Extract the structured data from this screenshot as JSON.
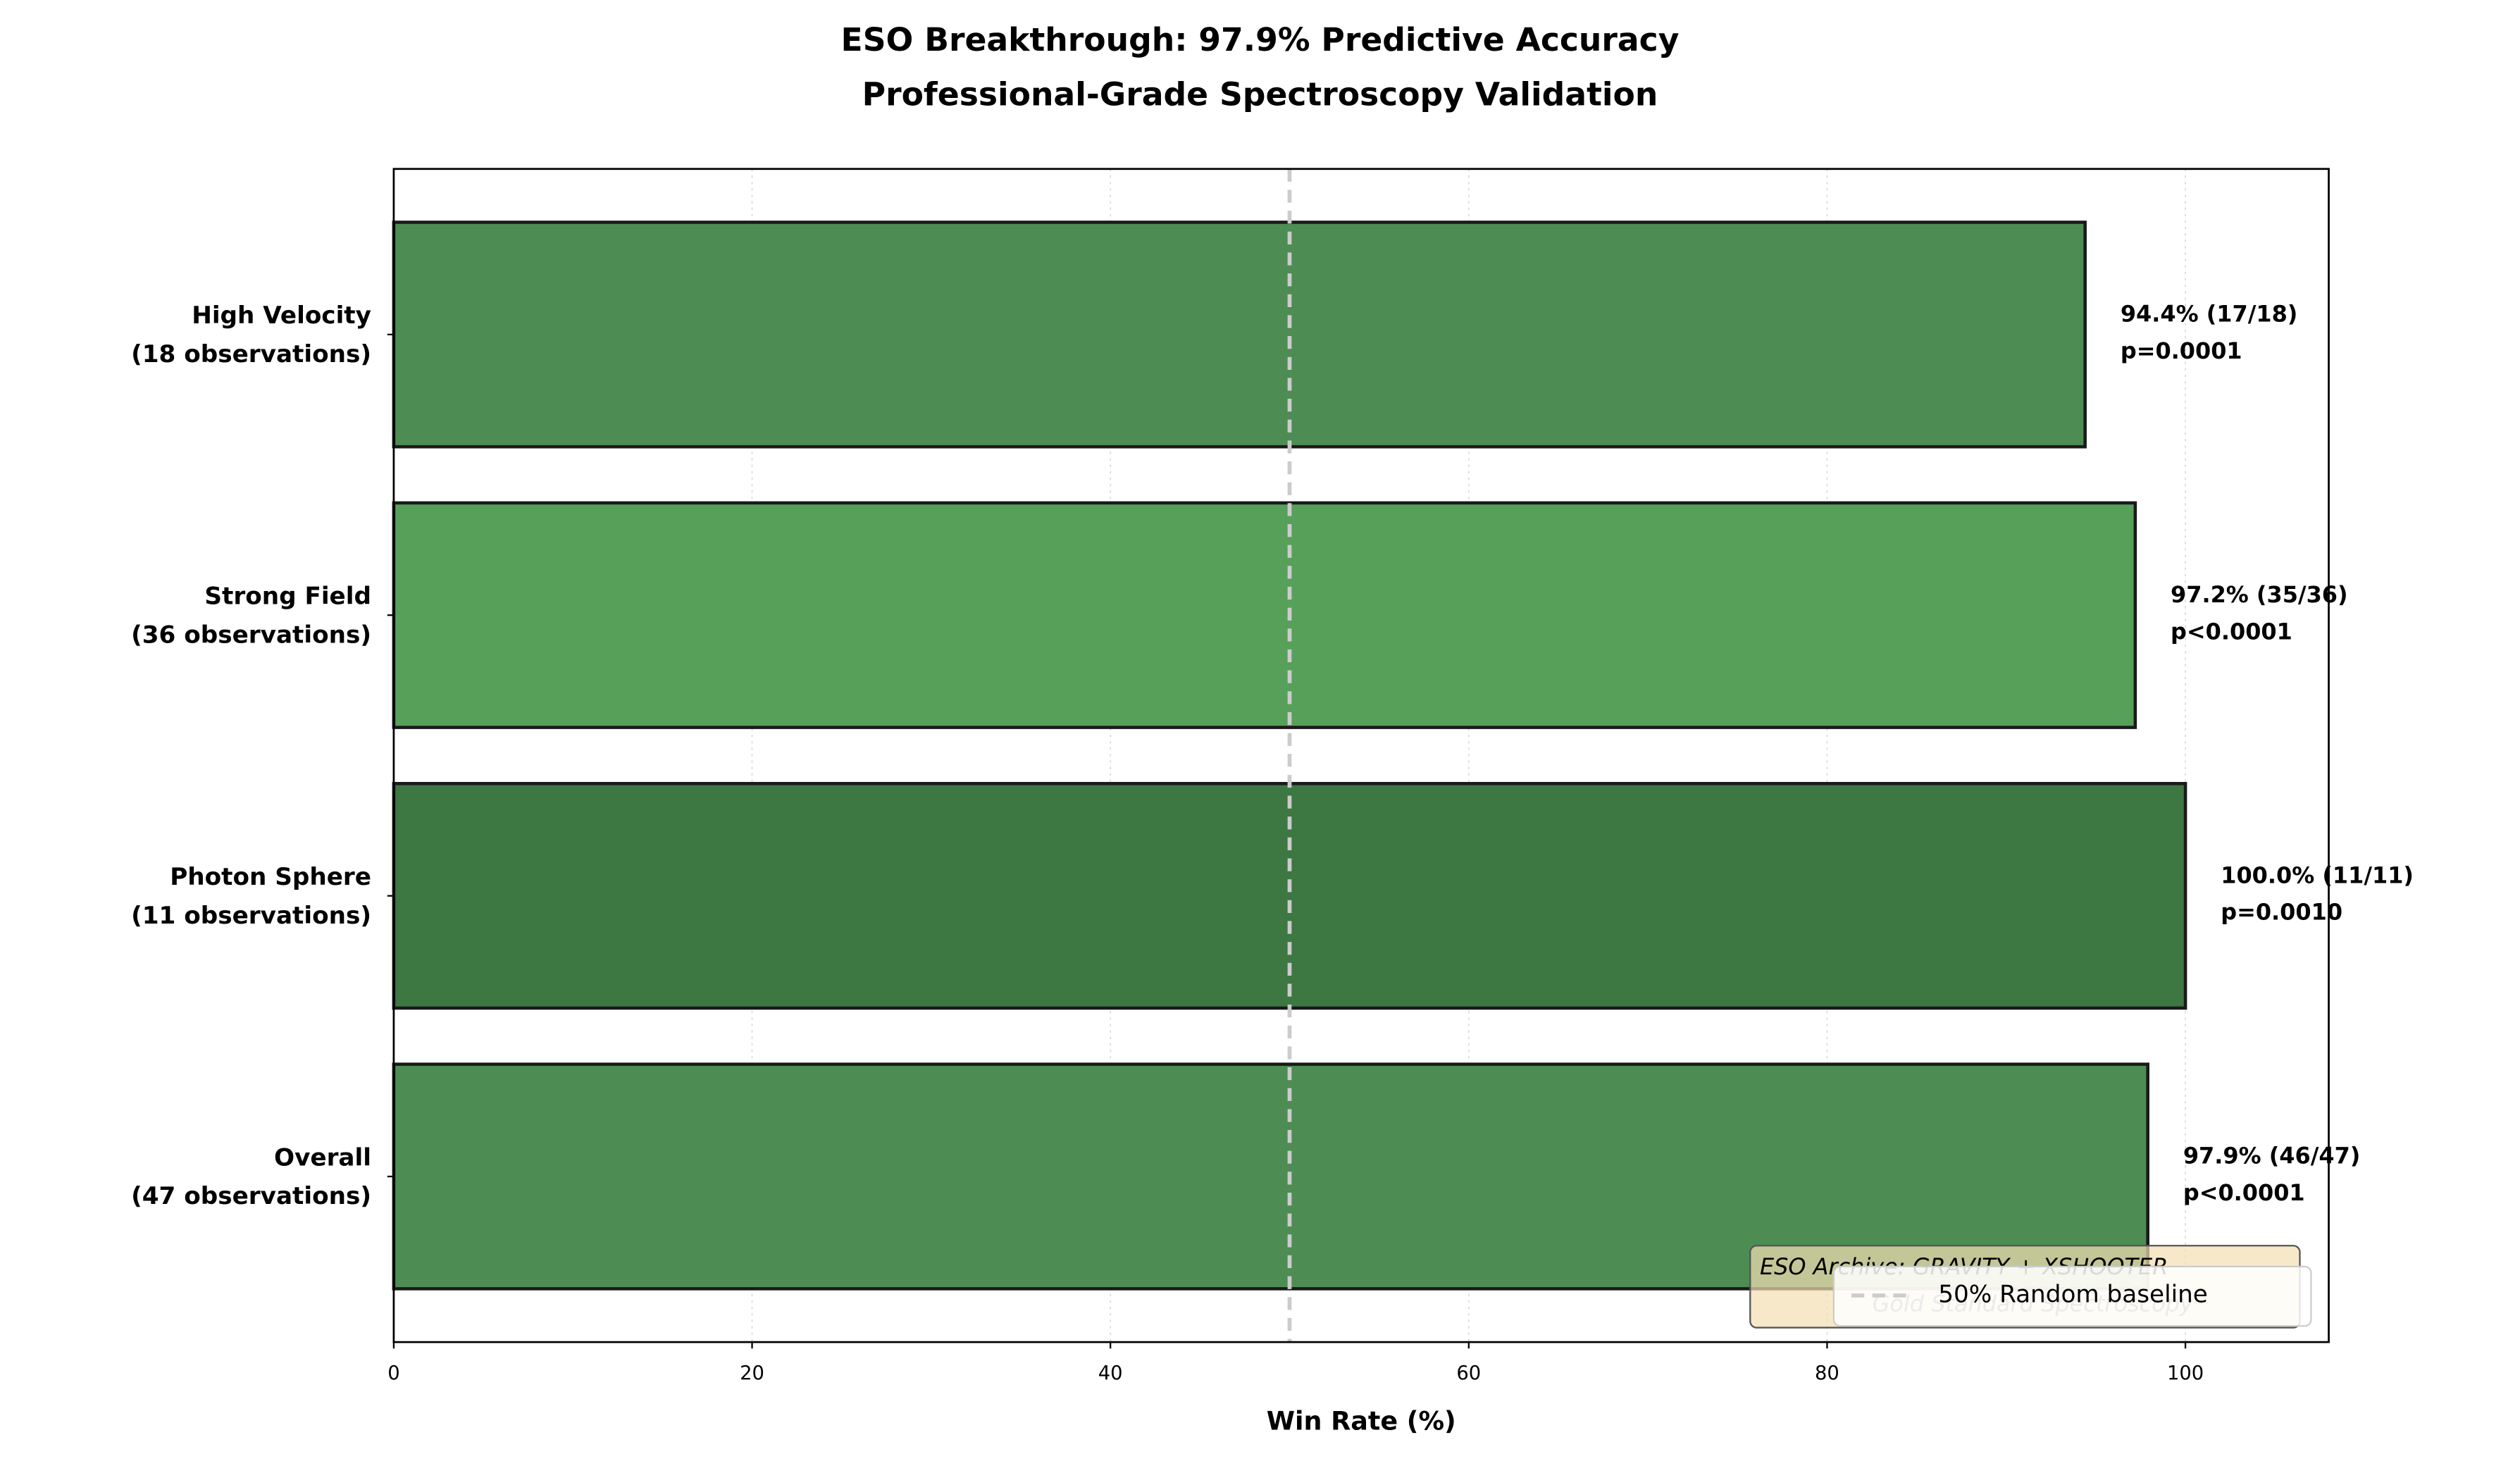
{
  "chart_data": {
    "type": "barh",
    "title": [
      "ESO Breakthrough: 97.9% Predictive Accuracy",
      "Professional-Grade Spectroscopy Validation"
    ],
    "xlabel": "Win Rate (%)",
    "categories": [
      "High Velocity",
      "Strong Field",
      "Photon Sphere",
      "Overall"
    ],
    "observations": [
      "(18 observations)",
      "(36 observations)",
      "(11 observations)",
      "(47 observations)"
    ],
    "values": [
      94.4,
      97.2,
      100.0,
      97.9
    ],
    "value_labels": [
      "94.4% (17/18)",
      "97.2% (35/36)",
      "100.0% (11/11)",
      "97.9% (46/47)"
    ],
    "p_values": [
      "p=0.0001",
      "p<0.0001",
      "p=0.0010",
      "p<0.0001"
    ],
    "colors": [
      "#4d8c52",
      "#56a05a",
      "#3d7742",
      "#4d8c52"
    ],
    "xlim": [
      0,
      108
    ],
    "xticks": [
      0,
      20,
      40,
      60,
      80,
      100
    ],
    "grid": true,
    "reference_line": {
      "value": 50,
      "label": "50% Random baseline",
      "color": "#cccccc"
    },
    "annotation": [
      "ESO Archive: GRAVITY + XSHOOTER",
      "Gold Standard Spectroscopy"
    ],
    "legend": "lower right"
  }
}
